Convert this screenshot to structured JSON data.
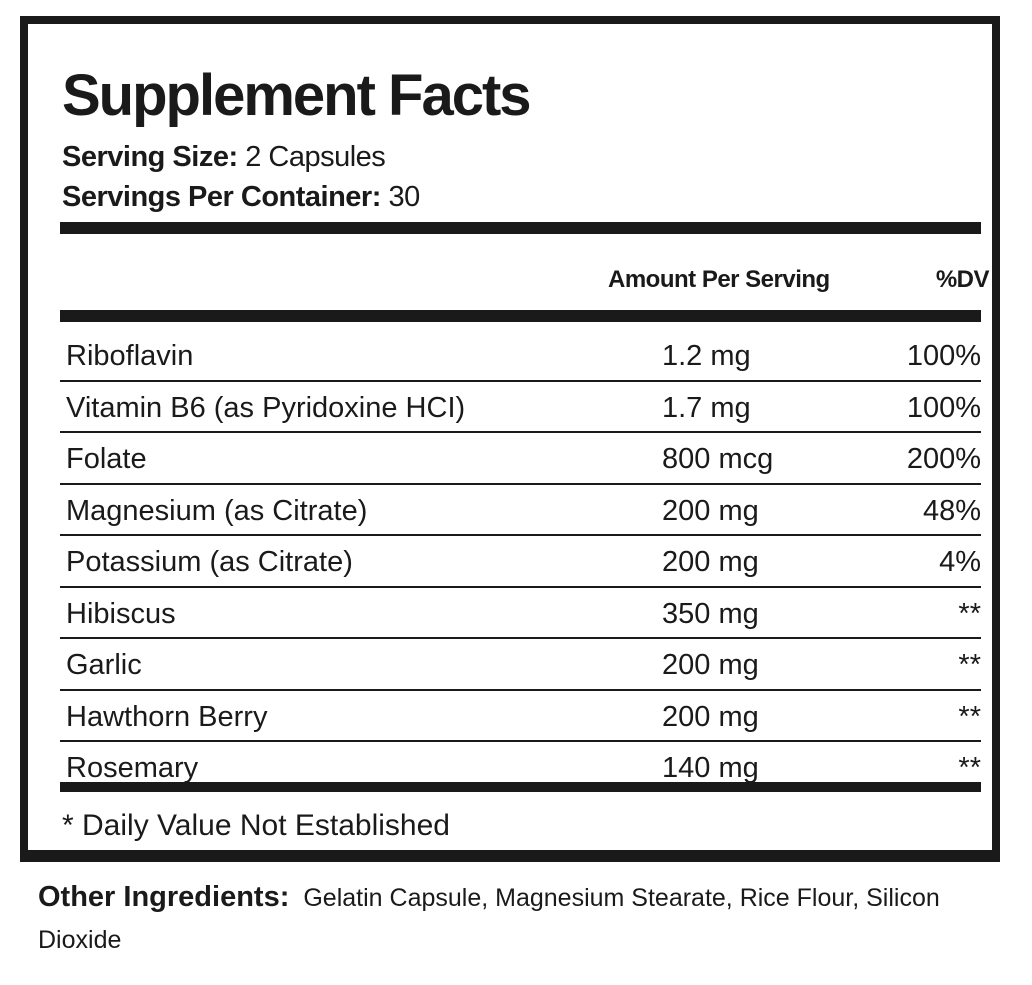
{
  "title": "Supplement Facts",
  "serving_size": {
    "label": "Serving Size:",
    "value": "2 Capsules"
  },
  "servings_per_container": {
    "label": "Servings Per Container:",
    "value": "30"
  },
  "columns": {
    "amount": "Amount Per Serving",
    "dv": "%DV"
  },
  "rows": [
    {
      "name": "Riboflavin",
      "amount": "1.2 mg",
      "dv": "100%"
    },
    {
      "name": "Vitamin B6 (as Pyridoxine HCI)",
      "amount": "1.7 mg",
      "dv": "100%"
    },
    {
      "name": "Folate",
      "amount": "800 mcg",
      "dv": "200%"
    },
    {
      "name": "Magnesium (as Citrate)",
      "amount": "200 mg",
      "dv": "48%"
    },
    {
      "name": "Potassium (as Citrate)",
      "amount": "200 mg",
      "dv": "4%"
    },
    {
      "name": "Hibiscus",
      "amount": "350 mg",
      "dv": "**"
    },
    {
      "name": "Garlic",
      "amount": "200 mg",
      "dv": "**"
    },
    {
      "name": "Hawthorn Berry",
      "amount": "200 mg",
      "dv": "**"
    },
    {
      "name": "Rosemary",
      "amount": "140 mg",
      "dv": "**"
    }
  ],
  "footnote": "* Daily Value Not Established",
  "other_ingredients": {
    "label": "Other Ingredients:",
    "value": "Gelatin Capsule, Magnesium Stearate, Rice Flour, Silicon Dioxide"
  }
}
